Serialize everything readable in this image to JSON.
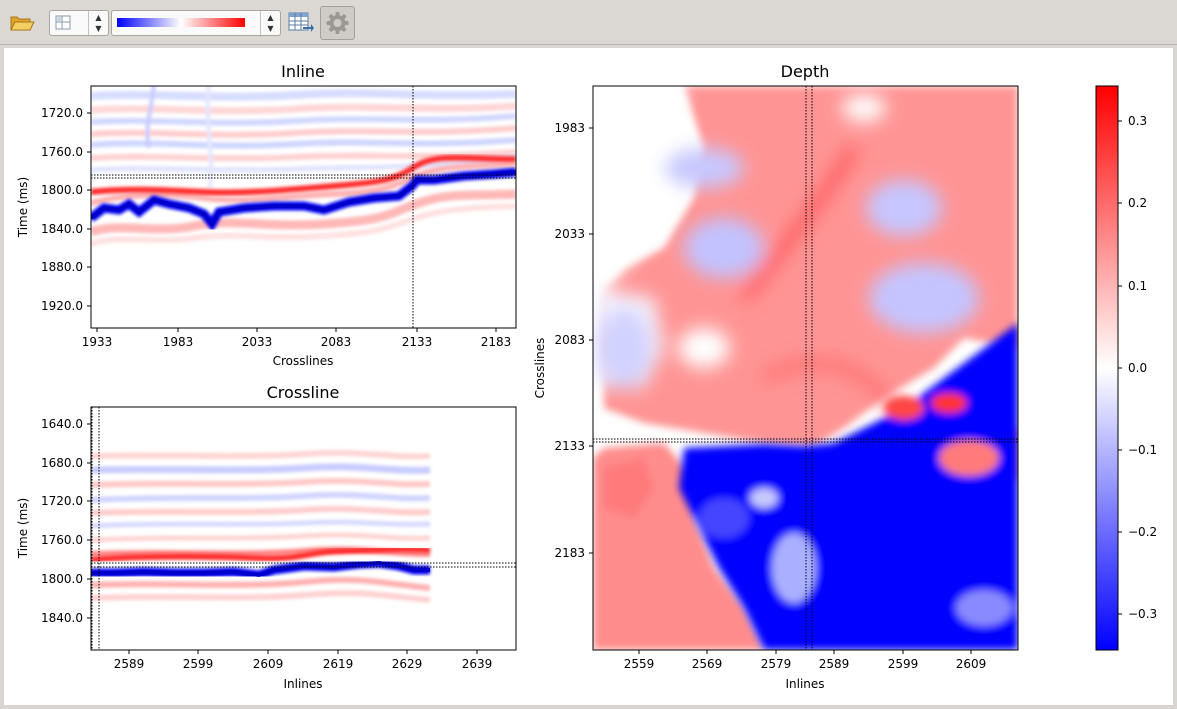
{
  "toolbar": {
    "open_icon": "folder-open-icon",
    "layout_icon": "layout-grid-icon",
    "colormap_name": "seismic",
    "colormap_colors": [
      "#0000ff",
      "#ffffff",
      "#ff0000"
    ],
    "export_icon": "table-export-icon",
    "settings_icon": "gear-icon"
  },
  "inline_plot": {
    "title": "Inline",
    "xlabel": "Crosslines",
    "ylabel": "Time (ms)",
    "xticks": [
      "1933",
      "1983",
      "2033",
      "2083",
      "2133",
      "2183"
    ],
    "yticks": [
      "1720.0",
      "1760.0",
      "1800.0",
      "1840.0",
      "1880.0",
      "1920.0"
    ]
  },
  "crossline_plot": {
    "title": "Crossline",
    "xlabel": "Inlines",
    "ylabel": "Time (ms)",
    "xticks": [
      "2589",
      "2599",
      "2609",
      "2619",
      "2629",
      "2639"
    ],
    "yticks": [
      "1640.0",
      "1680.0",
      "1720.0",
      "1760.0",
      "1800.0",
      "1840.0"
    ]
  },
  "depth_plot": {
    "title": "Depth",
    "xlabel": "Inlines",
    "ylabel": "Crosslines",
    "xticks": [
      "2559",
      "2569",
      "2579",
      "2589",
      "2599",
      "2609"
    ],
    "yticks": [
      "1983",
      "2033",
      "2083",
      "2133",
      "2183"
    ]
  },
  "colorbar": {
    "ticks": [
      "0.3",
      "0.2",
      "0.1",
      "0.0",
      "−0.1",
      "−0.2",
      "−0.3"
    ]
  },
  "chart_data": [
    {
      "type": "heatmap",
      "title": "Inline",
      "xlabel": "Crosslines",
      "ylabel": "Time (ms)",
      "xlim": [
        1929,
        2189
      ],
      "ylim": [
        1947,
        1697
      ],
      "crosshair": {
        "x": 2131,
        "y": 1783
      },
      "horizon_trough_time": [
        1822,
        1812,
        1816,
        1813,
        1814,
        1815,
        1815,
        1812,
        1811,
        1809,
        1806,
        1800,
        1795,
        1790,
        1789
      ]
    },
    {
      "type": "heatmap",
      "title": "Crossline",
      "xlabel": "Inlines",
      "ylabel": "Time (ms)",
      "xlim": [
        2584,
        2645
      ],
      "ylim": [
        1872,
        1622
      ],
      "crosshair": {
        "x": 2585,
        "y": 1787
      },
      "horizon_trough_time": [
        1794,
        1794,
        1793,
        1794,
        1795,
        1791,
        1790,
        1790,
        1789,
        1788,
        1789
      ]
    },
    {
      "type": "heatmap",
      "title": "Depth",
      "xlabel": "Inlines",
      "ylabel": "Crosslines",
      "xlim": [
        2553,
        2615
      ],
      "ylim": [
        2218,
        1953
      ],
      "crosshair": {
        "x": 2585,
        "y": 2131
      },
      "colorbar_range": [
        -0.34,
        0.34
      ]
    }
  ]
}
